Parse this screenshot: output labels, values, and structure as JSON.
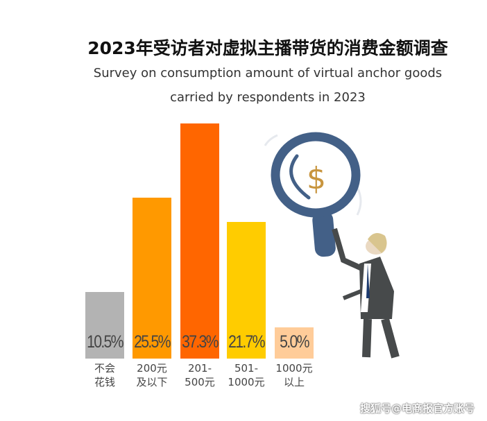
{
  "chart_data": {
    "type": "bar",
    "title": "2023年受访者对虚拟主播带货的消费金额调查",
    "subtitle": [
      "Survey on consumption amount of virtual anchor goods",
      "carried by respondents in 2023"
    ],
    "categories": [
      "不会\n花钱",
      "200元\n及以下",
      "201-\n500元",
      "501-\n1000元",
      "1000元\n以上"
    ],
    "values": [
      10.5,
      25.5,
      37.3,
      21.7,
      5.0
    ],
    "data_labels": [
      "10.5%",
      "25.5%",
      "37.3%",
      "21.7%",
      "5.0%"
    ],
    "colors": [
      "#b3b3b3",
      "#ff9900",
      "#ff6600",
      "#ffcc00",
      "#ffcc99"
    ],
    "xlabel": "",
    "ylabel": "",
    "grid": false
  },
  "watermark": "搜狐号@电商报官方账号"
}
